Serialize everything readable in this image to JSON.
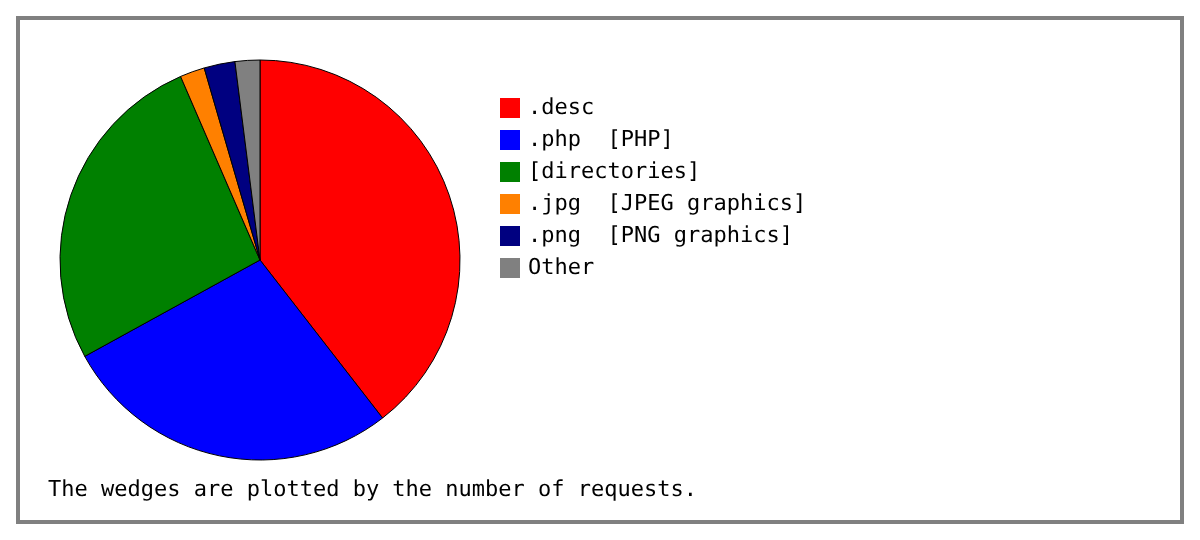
{
  "chart_data": {
    "type": "pie",
    "categories": [
      ".desc",
      ".php  [PHP]",
      "[directories]",
      ".jpg  [JPEG graphics]",
      ".png  [PNG graphics]",
      "Other"
    ],
    "values": [
      39.5,
      27.5,
      26.5,
      2,
      2.5,
      2
    ],
    "colors": [
      "#ff0000",
      "#0000ff",
      "#008000",
      "#ff8000",
      "#000080",
      "#808080"
    ],
    "legend": "right",
    "annotations": [
      "The wedges are plotted by the number of requests."
    ]
  }
}
